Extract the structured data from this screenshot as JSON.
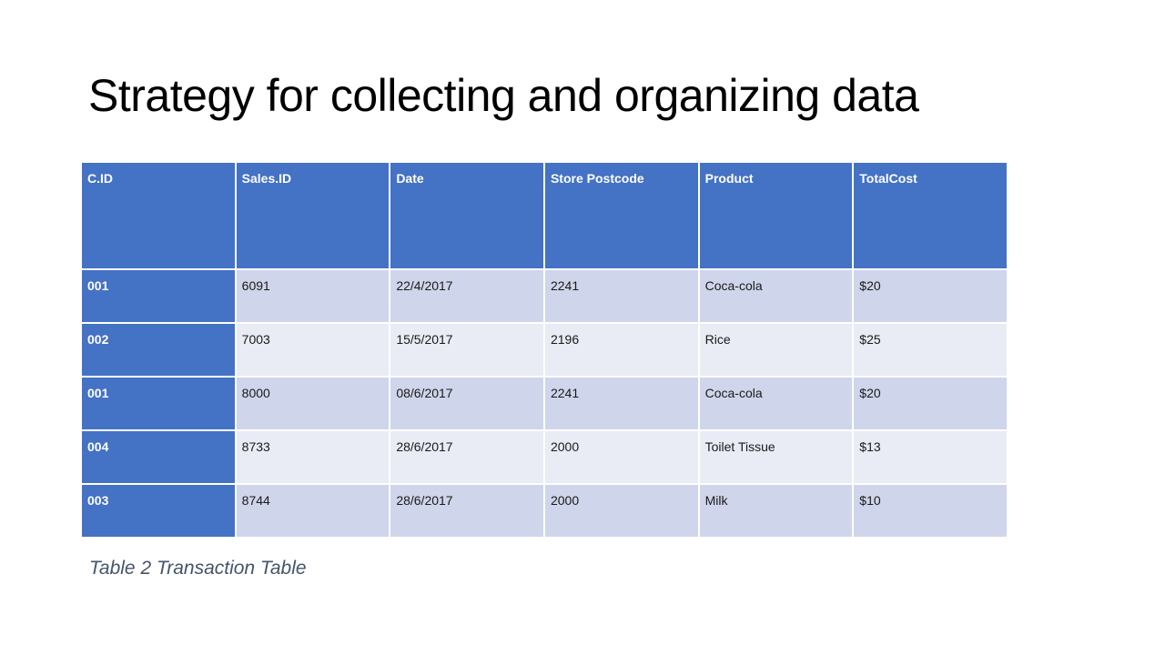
{
  "slide": {
    "title": "Strategy for collecting and organizing data",
    "caption": "Table 2 Transaction Table"
  },
  "table": {
    "headers": [
      "C.ID",
      "Sales.ID",
      "Date",
      "Store Postcode",
      "Product",
      "TotalCost"
    ],
    "rows": [
      [
        "001",
        "6091",
        "22/4/2017",
        "2241",
        "Coca-cola",
        "$20"
      ],
      [
        "002",
        "7003",
        "15/5/2017",
        "2196",
        "Rice",
        "$25"
      ],
      [
        "001",
        "8000",
        "08/6/2017",
        "2241",
        "Coca-cola",
        "$20"
      ],
      [
        "004",
        "8733",
        "28/6/2017",
        "2000",
        "Toilet Tissue",
        "$13"
      ],
      [
        "003",
        "8744",
        "28/6/2017",
        "2000",
        "Milk",
        "$10"
      ]
    ]
  },
  "colors": {
    "header_fill": "#4472c4",
    "band_dark": "#cfd5ea",
    "band_light": "#e9ebf5",
    "caption_text": "#44546a"
  }
}
